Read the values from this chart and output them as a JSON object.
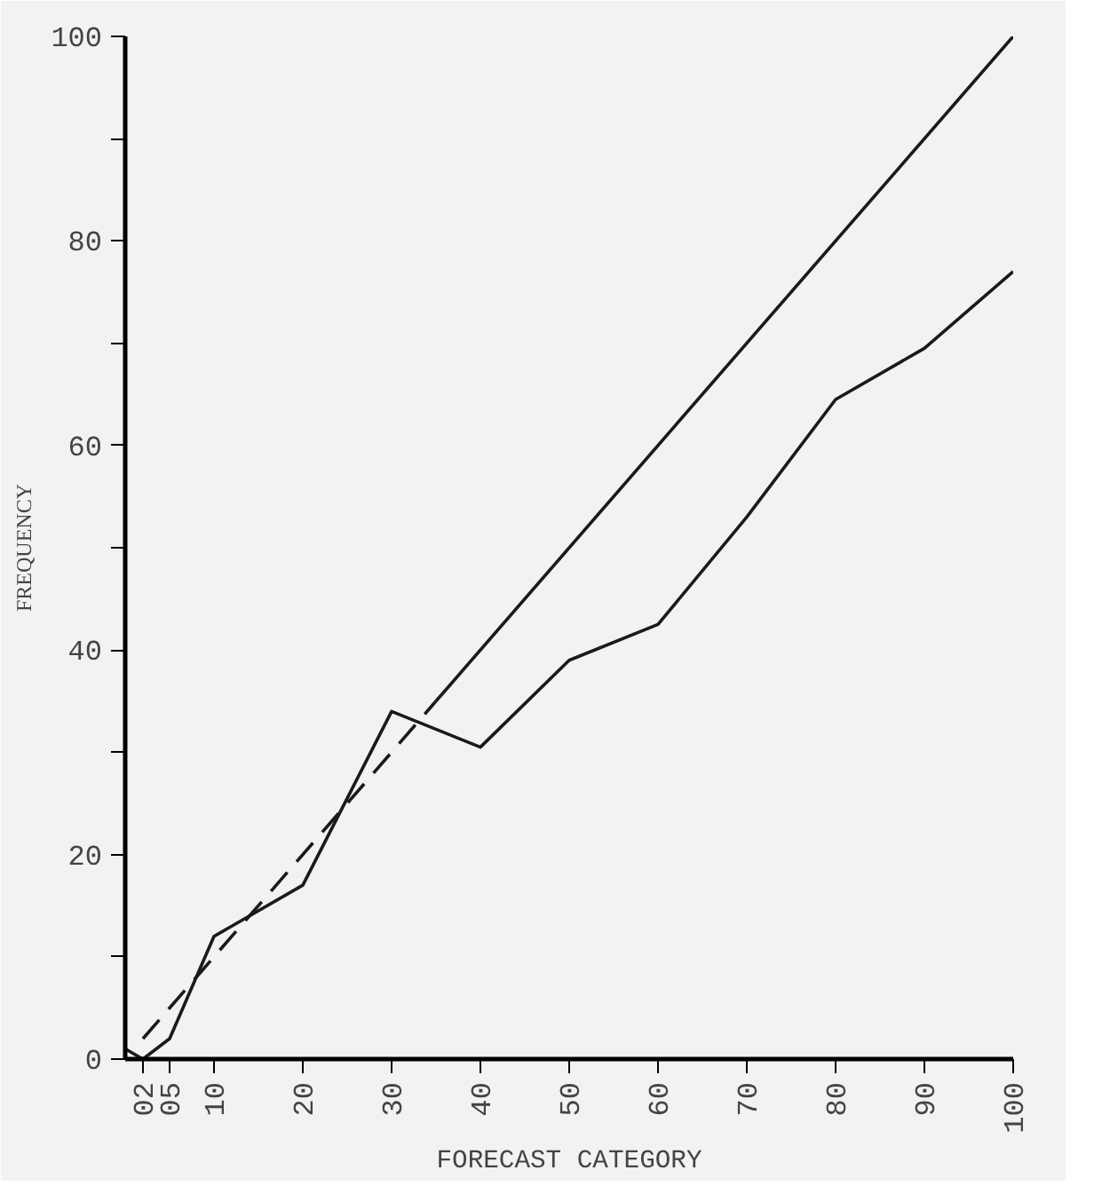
{
  "chart_data": {
    "type": "line",
    "xlabel": "FORECAST CATEGORY",
    "ylabel": "FREQUENCY",
    "xlim": [
      0,
      100
    ],
    "ylim": [
      0,
      100
    ],
    "xticks": [
      {
        "value": 2,
        "label": "02"
      },
      {
        "value": 5,
        "label": "05"
      },
      10,
      20,
      30,
      40,
      50,
      60,
      70,
      80,
      90,
      100
    ],
    "yticks": [
      0,
      {
        "value": 10,
        "label": null
      },
      20,
      {
        "value": 30,
        "label": null
      },
      40,
      {
        "value": 50,
        "label": null
      },
      60,
      {
        "value": 70,
        "label": null
      },
      80,
      {
        "value": 90,
        "label": null
      },
      100
    ],
    "grid": false,
    "marker": "none",
    "series": [
      {
        "color": "#1a1a1a",
        "x": [
          0,
          2,
          5,
          10,
          20,
          30,
          40,
          50,
          60,
          70,
          80,
          90,
          100
        ],
        "values": [
          1,
          0,
          2,
          12,
          17,
          34,
          30.5,
          39,
          42.5,
          53,
          64.5,
          69.5,
          77
        ],
        "line_style": "solid"
      },
      {
        "color": "#1a1a1a",
        "x": [
          2,
          35
        ],
        "values": [
          2,
          35
        ],
        "line_style": "dashed"
      },
      {
        "color": "#1a1a1a",
        "x": [
          35,
          100
        ],
        "values": [
          35,
          100
        ],
        "line_style": "solid"
      }
    ]
  }
}
